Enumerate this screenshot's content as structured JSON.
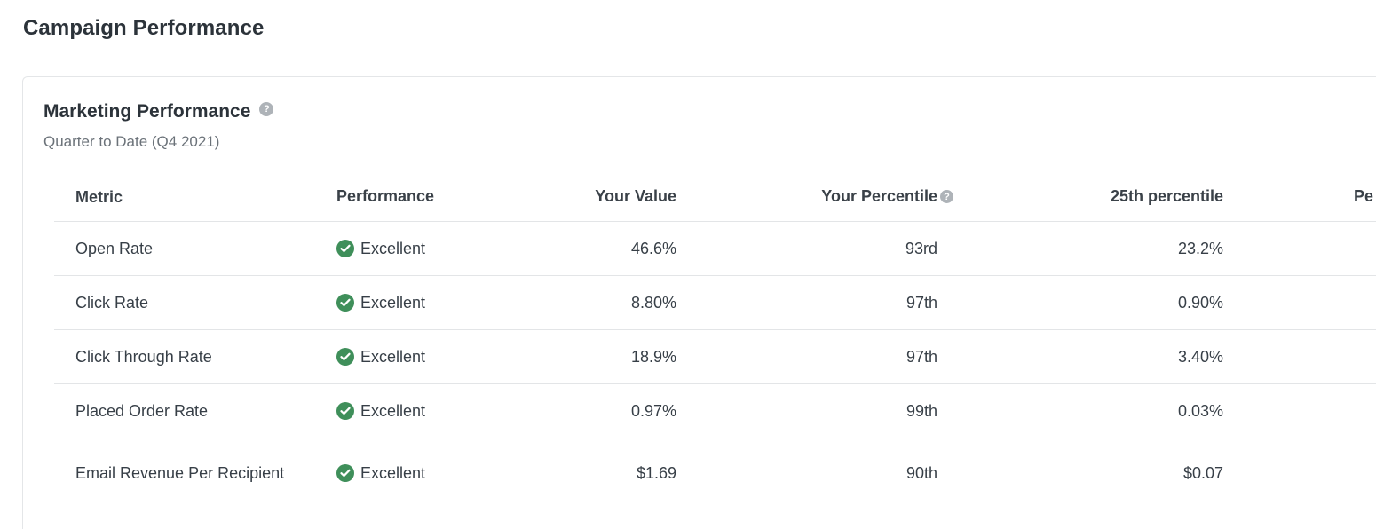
{
  "page_title": "Campaign Performance",
  "card": {
    "title": "Marketing Performance",
    "subtitle": "Quarter to Date (Q4 2021)",
    "help_icon": "question-circle-icon"
  },
  "table": {
    "headers": [
      "Metric",
      "Performance",
      "Your Value",
      "Your Percentile",
      "25th percentile",
      "Pe"
    ],
    "rows": [
      {
        "metric": "Open Rate",
        "performance": "Excellent",
        "value": "46.6%",
        "percentile": "93rd",
        "p25": "23.2%"
      },
      {
        "metric": "Click Rate",
        "performance": "Excellent",
        "value": "8.80%",
        "percentile": "97th",
        "p25": "0.90%"
      },
      {
        "metric": "Click Through Rate",
        "performance": "Excellent",
        "value": "18.9%",
        "percentile": "97th",
        "p25": "3.40%"
      },
      {
        "metric": "Placed Order Rate",
        "performance": "Excellent",
        "value": "0.97%",
        "percentile": "99th",
        "p25": "0.03%"
      },
      {
        "metric": "Email Revenue Per Recipient",
        "performance": "Excellent",
        "value": "$1.69",
        "percentile": "90th",
        "p25": "$0.07"
      }
    ]
  },
  "colors": {
    "excellent": "#3f8f5a",
    "help_icon": "#aeb3b8"
  }
}
